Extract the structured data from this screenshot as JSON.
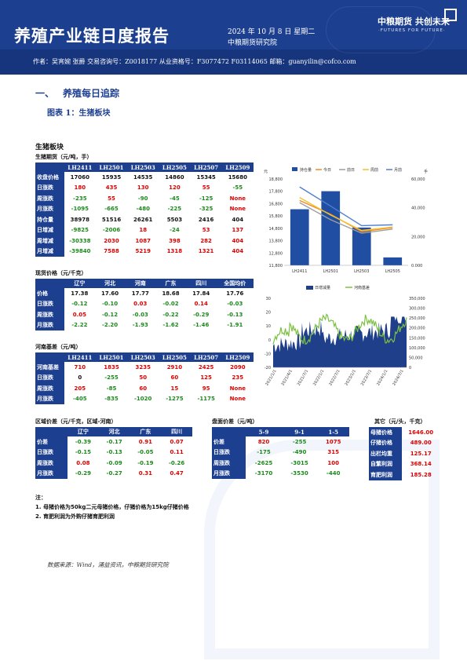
{
  "header": {
    "title": "养殖产业链日度报告",
    "date": "2024 年 10 月 8 日 星期二",
    "institute": "中粮期货研究院",
    "logo_cn": "中粮期货  共创未来",
    "logo_en": "·FUTURES FOR FUTURE·",
    "authors": "作者：吴宵婉  张爵  交易咨询号：Z0018177 从业资格号：F3077472 F03114065 邮箱：guanyilin@cofco.com"
  },
  "section": {
    "number": "一、",
    "title": "养殖每日追踪"
  },
  "figure_title": "图表 1：生猪板块",
  "panel_title": "生猪板块",
  "futures": {
    "title": "生猪期货（元/吨，手）",
    "columns": [
      "",
      "LH2411",
      "LH2501",
      "LH2503",
      "LH2505",
      "LH2507",
      "LH2509"
    ],
    "rows": [
      {
        "label": "收盘价格",
        "values": [
          "17060",
          "15935",
          "14535",
          "14860",
          "15345",
          "15680"
        ],
        "colors": [
          "k",
          "k",
          "k",
          "k",
          "k",
          "k"
        ]
      },
      {
        "label": "日涨跌",
        "values": [
          "180",
          "435",
          "130",
          "120",
          "55",
          "-55"
        ],
        "colors": [
          "r",
          "r",
          "r",
          "r",
          "r",
          "g"
        ]
      },
      {
        "label": "周涨跌",
        "values": [
          "-235",
          "55",
          "-90",
          "-45",
          "-125",
          "None"
        ],
        "colors": [
          "g",
          "r",
          "g",
          "g",
          "g",
          "r"
        ]
      },
      {
        "label": "月涨跌",
        "values": [
          "-1095",
          "-665",
          "-480",
          "-225",
          "-325",
          "None"
        ],
        "colors": [
          "g",
          "g",
          "g",
          "g",
          "g",
          "r"
        ]
      },
      {
        "label": "持仓量",
        "values": [
          "38978",
          "51516",
          "26261",
          "5503",
          "2416",
          "404"
        ],
        "colors": [
          "k",
          "k",
          "k",
          "k",
          "k",
          "k"
        ]
      },
      {
        "label": "日增减",
        "values": [
          "-9825",
          "-2006",
          "18",
          "-24",
          "53",
          "137"
        ],
        "colors": [
          "g",
          "g",
          "r",
          "g",
          "r",
          "r"
        ]
      },
      {
        "label": "周增减",
        "values": [
          "-30338",
          "2030",
          "1087",
          "398",
          "282",
          "404"
        ],
        "colors": [
          "g",
          "r",
          "r",
          "r",
          "r",
          "r"
        ]
      },
      {
        "label": "月增减",
        "values": [
          "-39840",
          "7588",
          "5219",
          "1318",
          "1321",
          "404"
        ],
        "colors": [
          "g",
          "r",
          "r",
          "r",
          "r",
          "r"
        ]
      }
    ]
  },
  "spot": {
    "title": "现货价格（元/千克）",
    "columns": [
      "",
      "辽宁",
      "河北",
      "河南",
      "广东",
      "四川",
      "全国均价"
    ],
    "rows": [
      {
        "label": "价格",
        "values": [
          "17.38",
          "17.60",
          "17.77",
          "18.68",
          "17.84",
          "17.76"
        ],
        "colors": [
          "k",
          "k",
          "k",
          "k",
          "k",
          "k"
        ]
      },
      {
        "label": "日涨跌",
        "values": [
          "-0.12",
          "-0.10",
          "0.03",
          "-0.02",
          "0.14",
          "-0.03"
        ],
        "colors": [
          "g",
          "g",
          "r",
          "g",
          "r",
          "g"
        ]
      },
      {
        "label": "周涨跌",
        "values": [
          "0.05",
          "-0.12",
          "-0.03",
          "-0.22",
          "-0.29",
          "-0.13"
        ],
        "colors": [
          "r",
          "g",
          "g",
          "g",
          "g",
          "g"
        ]
      },
      {
        "label": "月涨跌",
        "values": [
          "-2.22",
          "-2.20",
          "-1.93",
          "-1.62",
          "-1.46",
          "-1.91"
        ],
        "colors": [
          "g",
          "g",
          "g",
          "g",
          "g",
          "g"
        ]
      }
    ]
  },
  "basis": {
    "title": "河南基差（元/吨）",
    "columns": [
      "",
      "LH2411",
      "LH2501",
      "LH2503",
      "LH2505",
      "LH2507",
      "LH2509"
    ],
    "rows": [
      {
        "label": "河南基差",
        "values": [
          "710",
          "1835",
          "3235",
          "2910",
          "2425",
          "2090"
        ],
        "colors": [
          "r",
          "r",
          "r",
          "r",
          "r",
          "r"
        ]
      },
      {
        "label": "日涨跌",
        "values": [
          "0",
          "-255",
          "50",
          "60",
          "125",
          "235"
        ],
        "colors": [
          "k",
          "g",
          "r",
          "r",
          "r",
          "r"
        ]
      },
      {
        "label": "周涨跌",
        "values": [
          "205",
          "-85",
          "60",
          "15",
          "95",
          "None"
        ],
        "colors": [
          "r",
          "g",
          "r",
          "r",
          "r",
          "r"
        ]
      },
      {
        "label": "月涨跌",
        "values": [
          "-405",
          "-835",
          "-1020",
          "-1275",
          "-1175",
          "None"
        ],
        "colors": [
          "g",
          "g",
          "g",
          "g",
          "g",
          "r"
        ]
      }
    ]
  },
  "regional": {
    "title": "区域价差（元/千克，区域-河南）",
    "columns": [
      "",
      "辽宁",
      "河北",
      "广东",
      "四川"
    ],
    "rows": [
      {
        "label": "价差",
        "values": [
          "-0.39",
          "-0.17",
          "0.91",
          "0.07"
        ],
        "colors": [
          "g",
          "g",
          "r",
          "r"
        ]
      },
      {
        "label": "日涨跌",
        "values": [
          "-0.15",
          "-0.13",
          "-0.05",
          "0.11"
        ],
        "colors": [
          "g",
          "g",
          "g",
          "r"
        ]
      },
      {
        "label": "周涨跌",
        "values": [
          "0.08",
          "-0.09",
          "-0.19",
          "-0.26"
        ],
        "colors": [
          "r",
          "g",
          "g",
          "g"
        ]
      },
      {
        "label": "月涨跌",
        "values": [
          "-0.29",
          "-0.27",
          "0.31",
          "0.47"
        ],
        "colors": [
          "g",
          "g",
          "r",
          "r"
        ]
      }
    ]
  },
  "spread": {
    "title": "盘面价差（元/吨）",
    "columns": [
      "",
      "5-9",
      "9-1",
      "1-5"
    ],
    "rows": [
      {
        "label": "价差",
        "values": [
          "820",
          "-255",
          "1075"
        ],
        "colors": [
          "r",
          "g",
          "r"
        ]
      },
      {
        "label": "日涨跌",
        "values": [
          "-175",
          "-490",
          "315"
        ],
        "colors": [
          "g",
          "g",
          "r"
        ]
      },
      {
        "label": "周涨跌",
        "values": [
          "-2625",
          "-3015",
          "100"
        ],
        "colors": [
          "g",
          "g",
          "r"
        ]
      },
      {
        "label": "月涨跌",
        "values": [
          "-3170",
          "-3530",
          "-440"
        ],
        "colors": [
          "g",
          "g",
          "g"
        ]
      }
    ]
  },
  "other": {
    "title": "其它（元/头，千克）",
    "rows": [
      {
        "label": "母猪价格",
        "value": "1646.00"
      },
      {
        "label": "仔猪价格",
        "value": "489.00"
      },
      {
        "label": "出栏均重",
        "value": "125.17"
      },
      {
        "label": "自繁利润",
        "value": "368.14"
      },
      {
        "label": "育肥利润",
        "value": "185.28"
      }
    ]
  },
  "notes": {
    "heading": "注：",
    "lines": [
      "1. 母猪价格为50kg二元母猪价格，仔猪价格为15kg仔猪价格",
      "2. 育肥利润为外购仔猪育肥利润"
    ]
  },
  "source": "数据来源：Wind，涌益资讯，中粮期货研究院",
  "colors": {
    "navy": "#1d3f8f",
    "red": "#e00000",
    "green": "#1a8a1a"
  },
  "chart_data": [
    {
      "type": "bar",
      "y_left_label": "元",
      "y_right_label": "手",
      "legend": [
        "持仓量",
        "今日",
        "前日",
        "周前",
        "月前"
      ],
      "legend_colors": [
        "#1f4ea3",
        "#f08a24",
        "#9e9e9e",
        "#f2c12e",
        "#4f7fd1"
      ],
      "categories": [
        "LH2411",
        "LH2501",
        "LH2503",
        "LH2505"
      ],
      "left_ticks": [
        "11,800",
        "12,800",
        "13,800",
        "14,800",
        "15,800",
        "16,800",
        "17,800",
        "18,800"
      ],
      "right_ticks": [
        "0.000",
        "20,000",
        "40,000",
        "60,000"
      ],
      "ylim_left": [
        11800,
        18800
      ],
      "ylim_right": [
        0,
        60000
      ],
      "bars": [
        38978,
        51516,
        26261,
        5503
      ],
      "series": [
        {
          "name": "今日",
          "values": [
            17060,
            15935,
            14535,
            14860
          ]
        },
        {
          "name": "前日",
          "values": [
            16880,
            15500,
            14405,
            14740
          ]
        },
        {
          "name": "周前",
          "values": [
            17295,
            15880,
            14625,
            14905
          ]
        },
        {
          "name": "月前",
          "values": [
            18155,
            16600,
            15015,
            15085
          ]
        }
      ]
    },
    {
      "type": "area",
      "legend": [
        "日增减量",
        "河南基差"
      ],
      "legend_colors": [
        "#1f3f8a",
        "#7cc242"
      ],
      "left_ticks": [
        "-20",
        "-10",
        "0",
        "10",
        "20",
        "30"
      ],
      "right_ticks": [
        "0",
        "50,000",
        "100,000",
        "150,000",
        "200,000",
        "250,000",
        "300,000",
        "350,000"
      ],
      "ylim_left": [
        -20,
        30
      ],
      "ylim_right": [
        0,
        350000
      ],
      "x_ticks": [
        "2021/1/1",
        "2021/4/1",
        "2021/7/1",
        "2022/1/1",
        "2022/7/1",
        "2023/1/1",
        "2023/7/1",
        "2024/1/1",
        "2024/7/1"
      ]
    }
  ]
}
